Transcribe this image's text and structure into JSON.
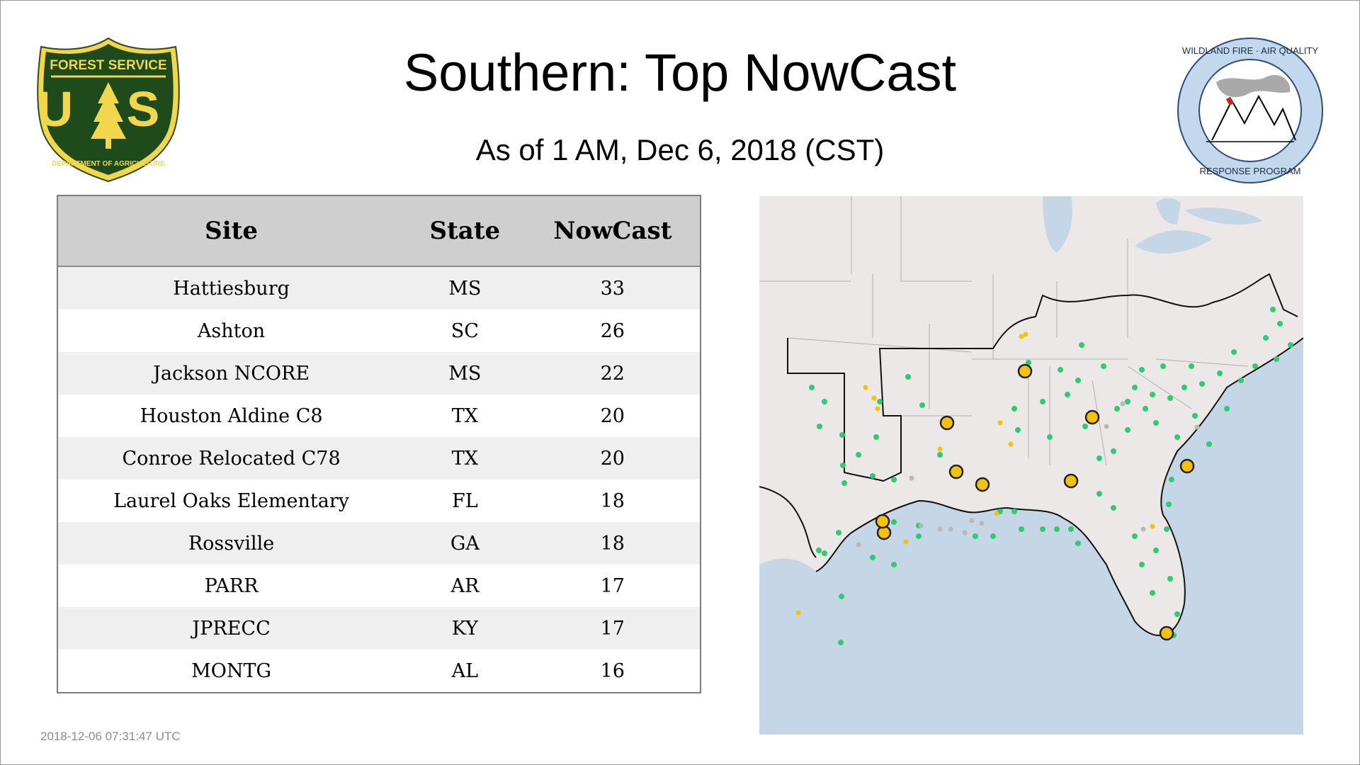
{
  "title": "Southern: Top NowCast",
  "subtitle": "As of  1 AM, Dec  6, 2018 (CST)",
  "logos": {
    "usfs_top": "FOREST SERVICE",
    "usfs_letters": "U S",
    "usfs_bottom": "DEPARTMENT OF AGRICULTURE",
    "wildland_top": "WILDLAND FIRE · AIR QUALITY",
    "wildland_bottom": "RESPONSE PROGRAM"
  },
  "table": {
    "headers": {
      "site": "Site",
      "state": "State",
      "nowcast": "NowCast"
    },
    "rows": [
      {
        "site": "Hattiesburg",
        "state": "MS",
        "nowcast": "33"
      },
      {
        "site": "Ashton",
        "state": "SC",
        "nowcast": "26"
      },
      {
        "site": "Jackson NCORE",
        "state": "MS",
        "nowcast": "22"
      },
      {
        "site": "Houston Aldine C8",
        "state": "TX",
        "nowcast": "20"
      },
      {
        "site": "Conroe Relocated C78",
        "state": "TX",
        "nowcast": "20"
      },
      {
        "site": "Laurel Oaks Elementary",
        "state": "FL",
        "nowcast": "18"
      },
      {
        "site": "Rossville",
        "state": "GA",
        "nowcast": "18"
      },
      {
        "site": "PARR",
        "state": "AR",
        "nowcast": "17"
      },
      {
        "site": "JPRECC",
        "state": "KY",
        "nowcast": "17"
      },
      {
        "site": "MONTG",
        "state": "AL",
        "nowcast": "16"
      }
    ]
  },
  "map": {
    "colors": {
      "land": "#ece8e7",
      "water": "#c5d7e7",
      "good": "#2ecc71",
      "moderate": "#f4c20d",
      "no_data": "#b8b8b8"
    }
  },
  "timestamp": "2018-12-06 07:31:47 UTC"
}
